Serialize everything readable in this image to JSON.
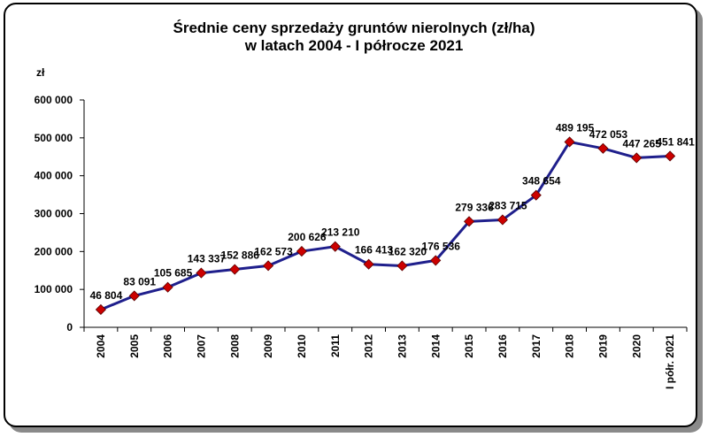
{
  "chart_data": {
    "type": "line",
    "title_line1": "Średnie ceny sprzedaży gruntów nierolnych (zł/ha)",
    "title_line2": "w latach 2004 - I półrocze 2021",
    "ylabel": "zł",
    "ylim": [
      0,
      600000
    ],
    "yticks": [
      0,
      100000,
      200000,
      300000,
      400000,
      500000,
      600000
    ],
    "ytick_labels": [
      "0",
      "100 000",
      "200 000",
      "300 000",
      "400 000",
      "500 000",
      "600 000"
    ],
    "categories": [
      "2004",
      "2005",
      "2006",
      "2007",
      "2008",
      "2009",
      "2010",
      "2011",
      "2012",
      "2013",
      "2014",
      "2015",
      "2016",
      "2017",
      "2018",
      "2019",
      "2020",
      "I półr. 2021"
    ],
    "values": [
      46804,
      83091,
      105685,
      143337,
      152886,
      162573,
      200626,
      213210,
      166413,
      162320,
      176536,
      279336,
      283715,
      348654,
      489195,
      472053,
      447265,
      451841
    ],
    "data_labels": [
      "46 804",
      "83 091",
      "105 685",
      "143 337",
      "152 886",
      "162 573",
      "200 626",
      "213 210",
      "166 413",
      "162 320",
      "176 536",
      "279 336",
      "283 715",
      "348 654",
      "489 195",
      "472 053",
      "447 265",
      "451 841"
    ],
    "colors": {
      "line": "#1f1f8c",
      "marker": "#cc0000",
      "marker_edge": "#5a0000"
    },
    "grid": false,
    "legend": "none"
  }
}
